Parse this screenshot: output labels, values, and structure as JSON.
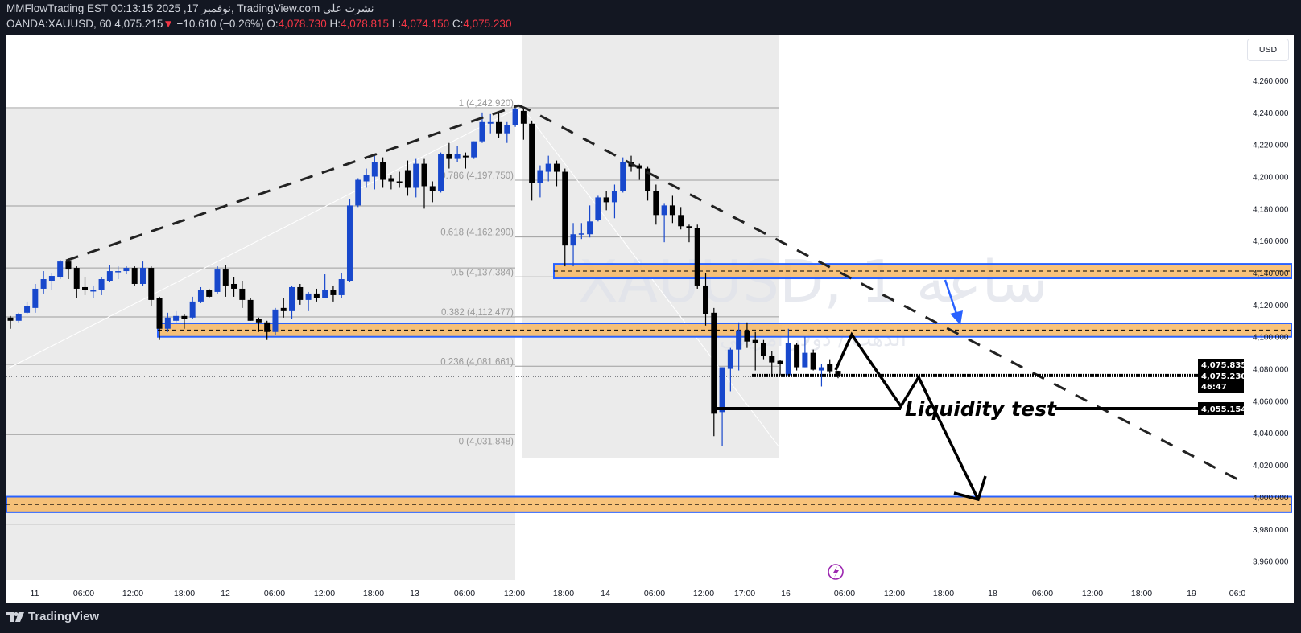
{
  "header": {
    "published_line": "MMFlowTrading EST 00:13:15 2025 ,17 نوفمبر, TradingView.com نشرت على",
    "symbol": "OANDA:XAUUSD, 60",
    "last_price": "4,075.215",
    "change": "−10.610 (−0.26%)",
    "down_arrow": "▼",
    "open_label": "O:",
    "open": "4,078.730",
    "high_label": "H:",
    "high": "4,078.815",
    "low_label": "L:",
    "low": "4,074.150",
    "close_label": "C:",
    "close": "4,075.230"
  },
  "watermark": {
    "title": "XAUUSD, 1 ساعة",
    "subtitle": "الذهب / دولار أمريكي"
  },
  "price_axis": {
    "currency": "USD",
    "current_ask": "4,075.835",
    "current_price": "4,075.230",
    "countdown": "46:47",
    "level_label": "4,055.154"
  },
  "annotations": {
    "liquidity_text": "Liquidity test"
  },
  "fib_levels": [
    {
      "label": "1 (4,242.920)",
      "price": 4242.92
    },
    {
      "label": "0.786 (4,197.750)",
      "price": 4197.75
    },
    {
      "label": "0.618 (4,162.290)",
      "price": 4162.29
    },
    {
      "label": "0.5 (4,137.384)",
      "price": 4137.384
    },
    {
      "label": "0.382 (4,112.477)",
      "price": 4112.477
    },
    {
      "label": "0.236 (4,081.661)",
      "price": 4081.661
    },
    {
      "label": "0 (4,031.848)",
      "price": 4031.848
    }
  ],
  "colors": {
    "bull": "#1848cc",
    "bear": "#000000",
    "zone_fill": "#f7b964",
    "zone_border": "#2962ff",
    "change_red": "#f23645",
    "alert_purple": "#9c27b0"
  },
  "chart_data": {
    "type": "candlestick",
    "symbol": "OANDA:XAUUSD",
    "interval": "60",
    "y_range": [
      3950,
      4270
    ],
    "y_ticks": [
      "4,260.000",
      "4,240.000",
      "4,220.000",
      "4,200.000",
      "4,180.000",
      "4,160.000",
      "4,140.000",
      "4,120.000",
      "4,100.000",
      "4,080.000",
      "4,060.000",
      "4,040.000",
      "4,020.000",
      "4,000.000",
      "3,980.000",
      "3,960.000"
    ],
    "y_tick_values": [
      4260,
      4240,
      4220,
      4200,
      4180,
      4160,
      4140,
      4120,
      4100,
      4080,
      4060,
      4040,
      4020,
      4000,
      3980,
      3960
    ],
    "x_ticks": [
      "11",
      "06:00",
      "12:00",
      "18:00",
      "12",
      "06:00",
      "12:00",
      "18:00",
      "13",
      "06:00",
      "12:00",
      "18:00",
      "14",
      "06:00",
      "12:00",
      "17:00",
      "16",
      "06:00",
      "12:00",
      "18:00",
      "18",
      "06:00",
      "12:00",
      "18:00",
      "19",
      "06:0"
    ],
    "candles_ohlc": [
      [
        4112,
        4113,
        4105,
        4110
      ],
      [
        4110,
        4115,
        4109,
        4114
      ],
      [
        4115,
        4122,
        4114,
        4119
      ],
      [
        4118,
        4133,
        4115,
        4130
      ],
      [
        4130,
        4141,
        4127,
        4136
      ],
      [
        4135,
        4140,
        4129,
        4138
      ],
      [
        4137,
        4148,
        4136,
        4147
      ],
      [
        4147,
        4149,
        4136,
        4142
      ],
      [
        4143,
        4144,
        4124,
        4130
      ],
      [
        4131,
        4137,
        4126,
        4129
      ],
      [
        4129,
        4132,
        4124,
        4129
      ],
      [
        4129,
        4137,
        4126,
        4136
      ],
      [
        4135,
        4145,
        4134,
        4141
      ],
      [
        4141,
        4144,
        4136,
        4141
      ],
      [
        4141,
        4144,
        4139,
        4143
      ],
      [
        4143,
        4144,
        4132,
        4133
      ],
      [
        4133,
        4147,
        4132,
        4143
      ],
      [
        4143,
        4144,
        4119,
        4123
      ],
      [
        4124,
        4125,
        4098,
        4105
      ],
      [
        4105,
        4115,
        4103,
        4112
      ],
      [
        4110,
        4116,
        4109,
        4113
      ],
      [
        4113,
        4114,
        4105,
        4111
      ],
      [
        4112,
        4125,
        4111,
        4122
      ],
      [
        4122,
        4131,
        4121,
        4129
      ],
      [
        4129,
        4130,
        4124,
        4125
      ],
      [
        4128,
        4144,
        4127,
        4142
      ],
      [
        4142,
        4145,
        4125,
        4132
      ],
      [
        4133,
        4137,
        4125,
        4130
      ],
      [
        4130,
        4135,
        4118,
        4123
      ],
      [
        4123,
        4124,
        4110,
        4110
      ],
      [
        4111,
        4112,
        4103,
        4109
      ],
      [
        4109,
        4110,
        4098,
        4103
      ],
      [
        4103,
        4118,
        4101,
        4117
      ],
      [
        4118,
        4124,
        4112,
        4116
      ],
      [
        4116,
        4132,
        4111,
        4131
      ],
      [
        4131,
        4133,
        4120,
        4123
      ],
      [
        4123,
        4128,
        4116,
        4127
      ],
      [
        4127,
        4130,
        4122,
        4124
      ],
      [
        4124,
        4139,
        4124,
        4129
      ],
      [
        4129,
        4132,
        4122,
        4126
      ],
      [
        4126,
        4140,
        4124,
        4136
      ],
      [
        4135,
        4186,
        4134,
        4182
      ],
      [
        4182,
        4199,
        4181,
        4198
      ],
      [
        4197,
        4205,
        4193,
        4201
      ],
      [
        4200,
        4213,
        4192,
        4209
      ],
      [
        4209,
        4212,
        4193,
        4198
      ],
      [
        4199,
        4201,
        4192,
        4197
      ],
      [
        4197,
        4203,
        4193,
        4196
      ],
      [
        4204,
        4210,
        4188,
        4193
      ],
      [
        4193,
        4211,
        4187,
        4208
      ],
      [
        4208,
        4211,
        4180,
        4194
      ],
      [
        4194,
        4197,
        4184,
        4191
      ],
      [
        4191,
        4215,
        4190,
        4214
      ],
      [
        4214,
        4221,
        4205,
        4211
      ],
      [
        4211,
        4219,
        4209,
        4214
      ],
      [
        4213,
        4215,
        4205,
        4212
      ],
      [
        4212,
        4222,
        4211,
        4222
      ],
      [
        4222,
        4240,
        4221,
        4234
      ],
      [
        4233,
        4239,
        4227,
        4234
      ],
      [
        4234,
        4240,
        4224,
        4227
      ],
      [
        4227,
        4234,
        4221,
        4232
      ],
      [
        4232,
        4242.92,
        4231,
        4242
      ],
      [
        4241,
        4242.5,
        4223,
        4233
      ],
      [
        4233,
        4235,
        4185,
        4196
      ],
      [
        4196,
        4207,
        4187,
        4204
      ],
      [
        4203,
        4213,
        4197,
        4208
      ],
      [
        4208,
        4210,
        4194,
        4203
      ],
      [
        4203,
        4205,
        4144,
        4157
      ],
      [
        4157,
        4171,
        4144,
        4164
      ],
      [
        4164,
        4171,
        4161,
        4164.5
      ],
      [
        4164,
        4182,
        4162,
        4172
      ],
      [
        4173,
        4188,
        4172,
        4187
      ],
      [
        4187,
        4191,
        4179,
        4184
      ],
      [
        4184,
        4195,
        4174,
        4191
      ],
      [
        4191,
        4212,
        4190,
        4209
      ],
      [
        4209,
        4213,
        4203,
        4206
      ],
      [
        4207,
        4208,
        4198,
        4205
      ],
      [
        4205,
        4206,
        4185,
        4191
      ],
      [
        4191,
        4195,
        4170,
        4176
      ],
      [
        4176,
        4183,
        4159,
        4182
      ],
      [
        4182,
        4188,
        4171,
        4176
      ],
      [
        4176,
        4181,
        4167,
        4169
      ],
      [
        4169,
        4170,
        4159,
        4168
      ],
      [
        4168,
        4170,
        4130,
        4132
      ],
      [
        4132,
        4140,
        4107,
        4114
      ],
      [
        4115,
        4118,
        4038,
        4052
      ],
      [
        4053,
        4081,
        4031.848,
        4081
      ],
      [
        4080,
        4093,
        4066,
        4092
      ],
      [
        4092,
        4109,
        4079,
        4104
      ],
      [
        4104,
        4109,
        4093,
        4097
      ],
      [
        4098,
        4103,
        4079,
        4096
      ],
      [
        4096,
        4098,
        4086,
        4088
      ],
      [
        4088,
        4091,
        4075,
        4084
      ],
      [
        4085,
        4085.5,
        4076,
        4083
      ],
      [
        4076,
        4105,
        4076,
        4096
      ],
      [
        4095,
        4096,
        4079,
        4081
      ],
      [
        4081,
        4100,
        4081,
        4090
      ],
      [
        4090,
        4092,
        4079,
        4079.5
      ],
      [
        4079,
        4083,
        4069,
        4081
      ],
      [
        4083,
        4086,
        4077,
        4078.5
      ],
      [
        4078.73,
        4078.815,
        4074.15,
        4075.23
      ]
    ],
    "zones": [
      {
        "top": 4145.5,
        "bottom": 4136.5
      },
      {
        "top": 4108.4,
        "bottom": 4100.0
      },
      {
        "top": 4000.2,
        "bottom": 3990.5
      }
    ],
    "left_fib_levels": [
      4242.92,
      4181.7,
      4143.0,
      4112.4,
      4082.8,
      4039.0,
      3983.0
    ],
    "horizontal_levels": {
      "current_ask": 4075.835,
      "current": 4075.23,
      "liquidity": 4055.154
    }
  },
  "footer": {
    "brand": "TradingView"
  }
}
